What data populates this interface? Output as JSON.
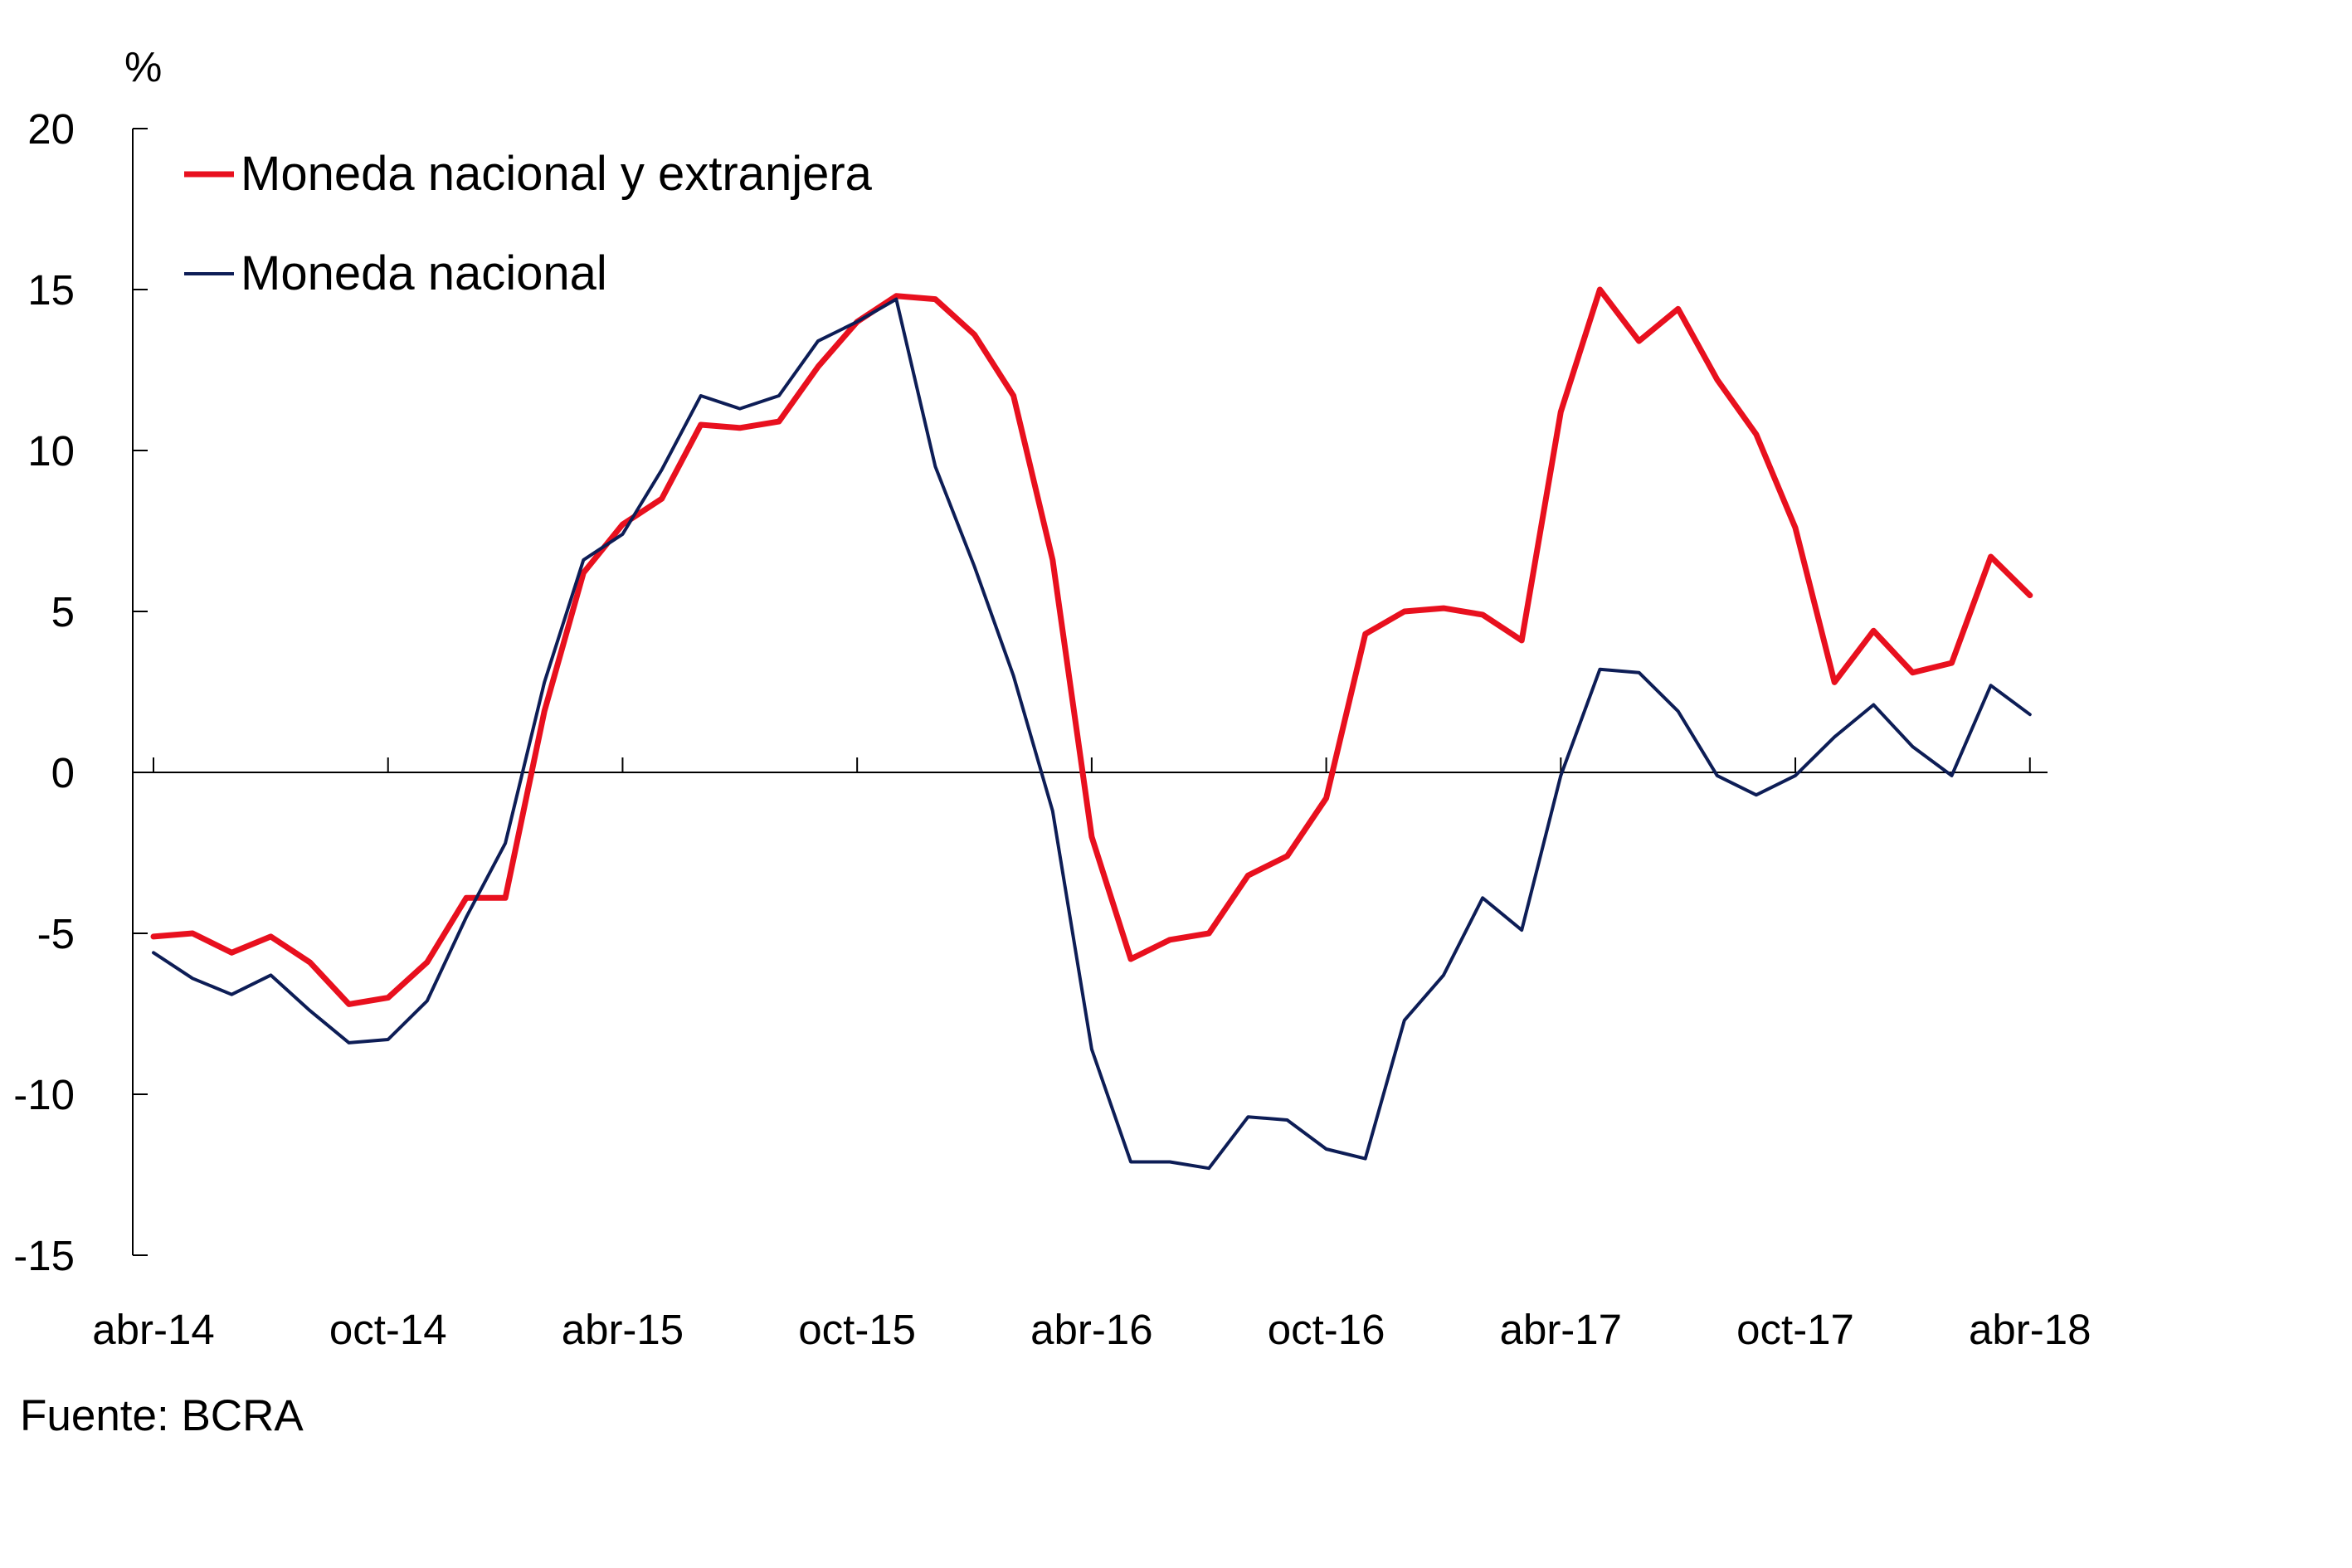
{
  "chart_data": {
    "type": "line",
    "unit_label": "%",
    "source": "Fuente: BCRA",
    "ylim": [
      -15,
      20
    ],
    "yticks": [
      -15,
      -10,
      -5,
      0,
      5,
      10,
      15,
      20
    ],
    "xticks": [
      "abr-14",
      "oct-14",
      "abr-15",
      "oct-15",
      "abr-16",
      "oct-16",
      "abr-17",
      "oct-17",
      "abr-18"
    ],
    "x": [
      "abr-14",
      "may-14",
      "jun-14",
      "jul-14",
      "ago-14",
      "sep-14",
      "oct-14",
      "nov-14",
      "dic-14",
      "ene-15",
      "feb-15",
      "mar-15",
      "abr-15",
      "may-15",
      "jun-15",
      "jul-15",
      "ago-15",
      "sep-15",
      "oct-15",
      "nov-15",
      "dic-15",
      "ene-16",
      "feb-16",
      "mar-16",
      "abr-16",
      "may-16",
      "jun-16",
      "jul-16",
      "ago-16",
      "sep-16",
      "oct-16",
      "nov-16",
      "dic-16",
      "ene-17",
      "feb-17",
      "mar-17",
      "abr-17",
      "may-17",
      "jun-17",
      "jul-17",
      "ago-17",
      "sep-17",
      "oct-17",
      "nov-17",
      "dic-17",
      "ene-18",
      "feb-18",
      "mar-18",
      "abr-18"
    ],
    "series": [
      {
        "name": "Moneda nacional y extranjera",
        "color": "#e8101e",
        "values": [
          -5.1,
          -5.0,
          -5.6,
          -5.1,
          -5.9,
          -7.2,
          -7.0,
          -5.9,
          -3.9,
          -3.9,
          1.9,
          6.2,
          7.7,
          8.5,
          10.8,
          10.7,
          10.9,
          12.6,
          14.0,
          14.8,
          14.7,
          13.6,
          11.7,
          6.6,
          -2.0,
          -5.8,
          -5.2,
          -5.0,
          -3.2,
          -2.6,
          -0.8,
          4.3,
          5.0,
          5.1,
          4.9,
          4.1,
          11.2,
          15.0,
          13.4,
          14.4,
          12.2,
          10.5,
          7.6,
          2.8,
          4.4,
          3.1,
          3.4,
          6.7,
          5.5
        ]
      },
      {
        "name": "Moneda nacional",
        "color": "#0d1d56",
        "values": [
          -5.6,
          -6.4,
          -6.9,
          -6.3,
          -7.4,
          -8.4,
          -8.3,
          -7.1,
          -4.5,
          -2.2,
          2.8,
          6.6,
          7.4,
          9.4,
          11.7,
          11.3,
          11.7,
          13.4,
          14.0,
          14.7,
          9.5,
          6.4,
          3.0,
          -1.2,
          -8.6,
          -12.1,
          -12.1,
          -12.3,
          -10.7,
          -10.8,
          -11.7,
          -12.0,
          -7.7,
          -6.3,
          -3.9,
          -4.9,
          -0.1,
          3.2,
          3.1,
          1.9,
          -0.1,
          -0.7,
          -0.1,
          1.1,
          2.1,
          0.8,
          -0.1,
          2.7,
          1.8
        ]
      }
    ],
    "grid": false,
    "legend_position": "top-left"
  }
}
